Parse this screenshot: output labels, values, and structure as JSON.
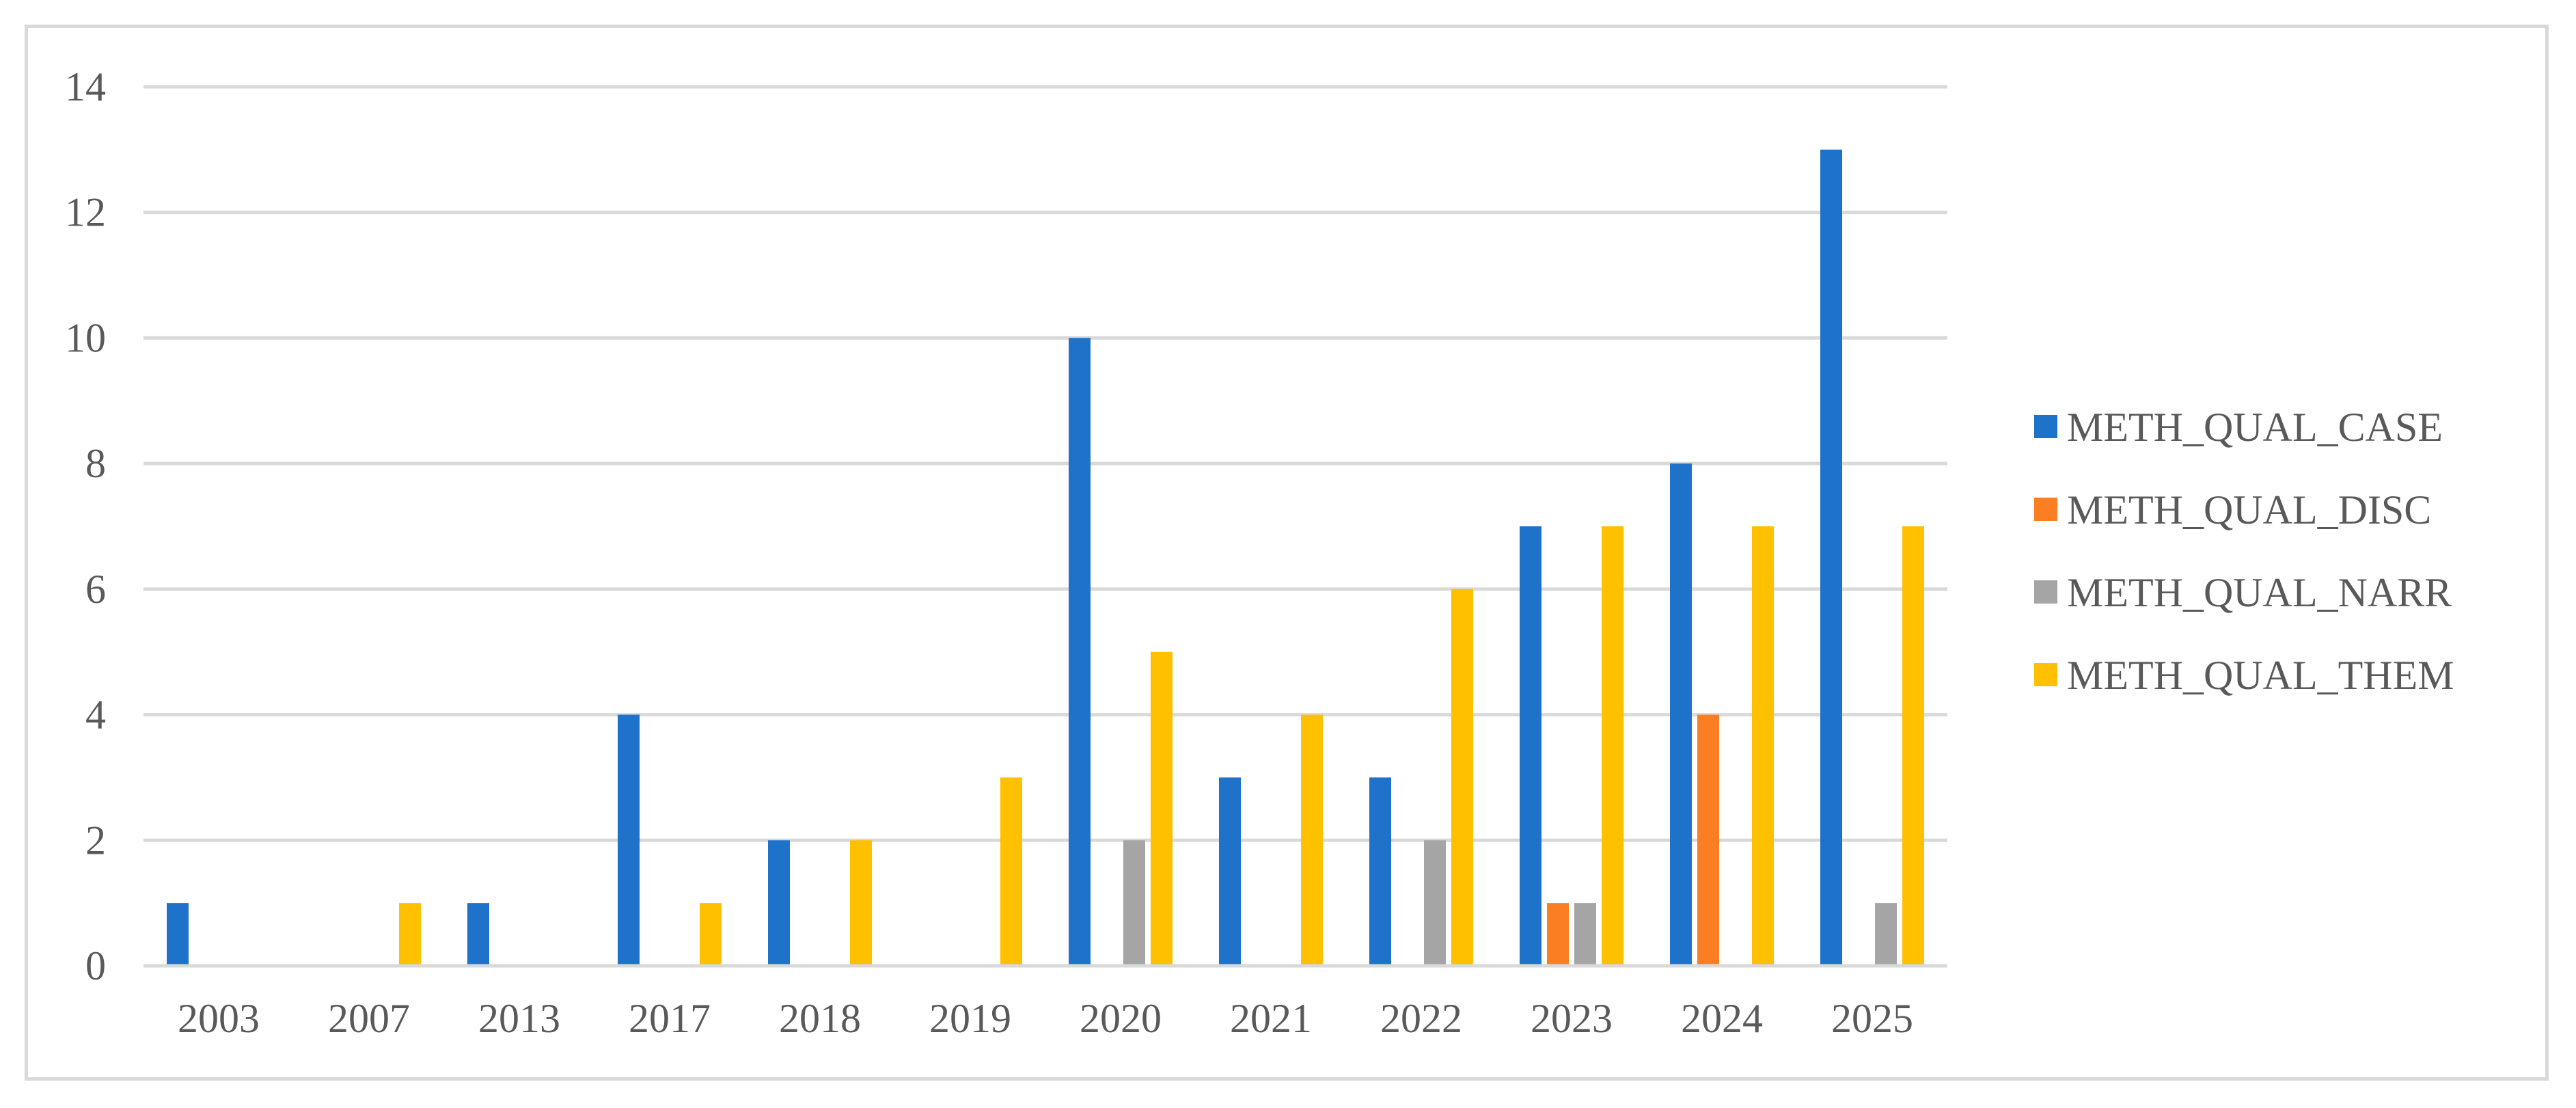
{
  "chart_data": {
    "type": "bar",
    "categories": [
      "2003",
      "2007",
      "2013",
      "2017",
      "2018",
      "2019",
      "2020",
      "2021",
      "2022",
      "2023",
      "2024",
      "2025"
    ],
    "series": [
      {
        "name": "METH_QUAL_CASE",
        "color": "#1f72c9",
        "values": [
          1,
          0,
          1,
          4,
          2,
          0,
          10,
          3,
          3,
          7,
          8,
          13
        ]
      },
      {
        "name": "METH_QUAL_DISC",
        "color": "#fb7e23",
        "values": [
          0,
          0,
          0,
          0,
          0,
          0,
          0,
          0,
          0,
          1,
          4,
          0
        ]
      },
      {
        "name": "METH_QUAL_NARR",
        "color": "#a5a5a5",
        "values": [
          0,
          0,
          0,
          0,
          0,
          0,
          2,
          0,
          2,
          1,
          0,
          1
        ]
      },
      {
        "name": "METH_QUAL_THEM",
        "color": "#ffc000",
        "values": [
          0,
          1,
          0,
          1,
          2,
          3,
          5,
          4,
          6,
          7,
          7,
          7
        ]
      }
    ],
    "yticks": [
      "0",
      "2",
      "4",
      "6",
      "8",
      "10",
      "12",
      "14"
    ],
    "ylim": [
      0,
      14
    ],
    "grid": true,
    "legend": "right",
    "title": "",
    "xlabel": "",
    "ylabel": ""
  }
}
